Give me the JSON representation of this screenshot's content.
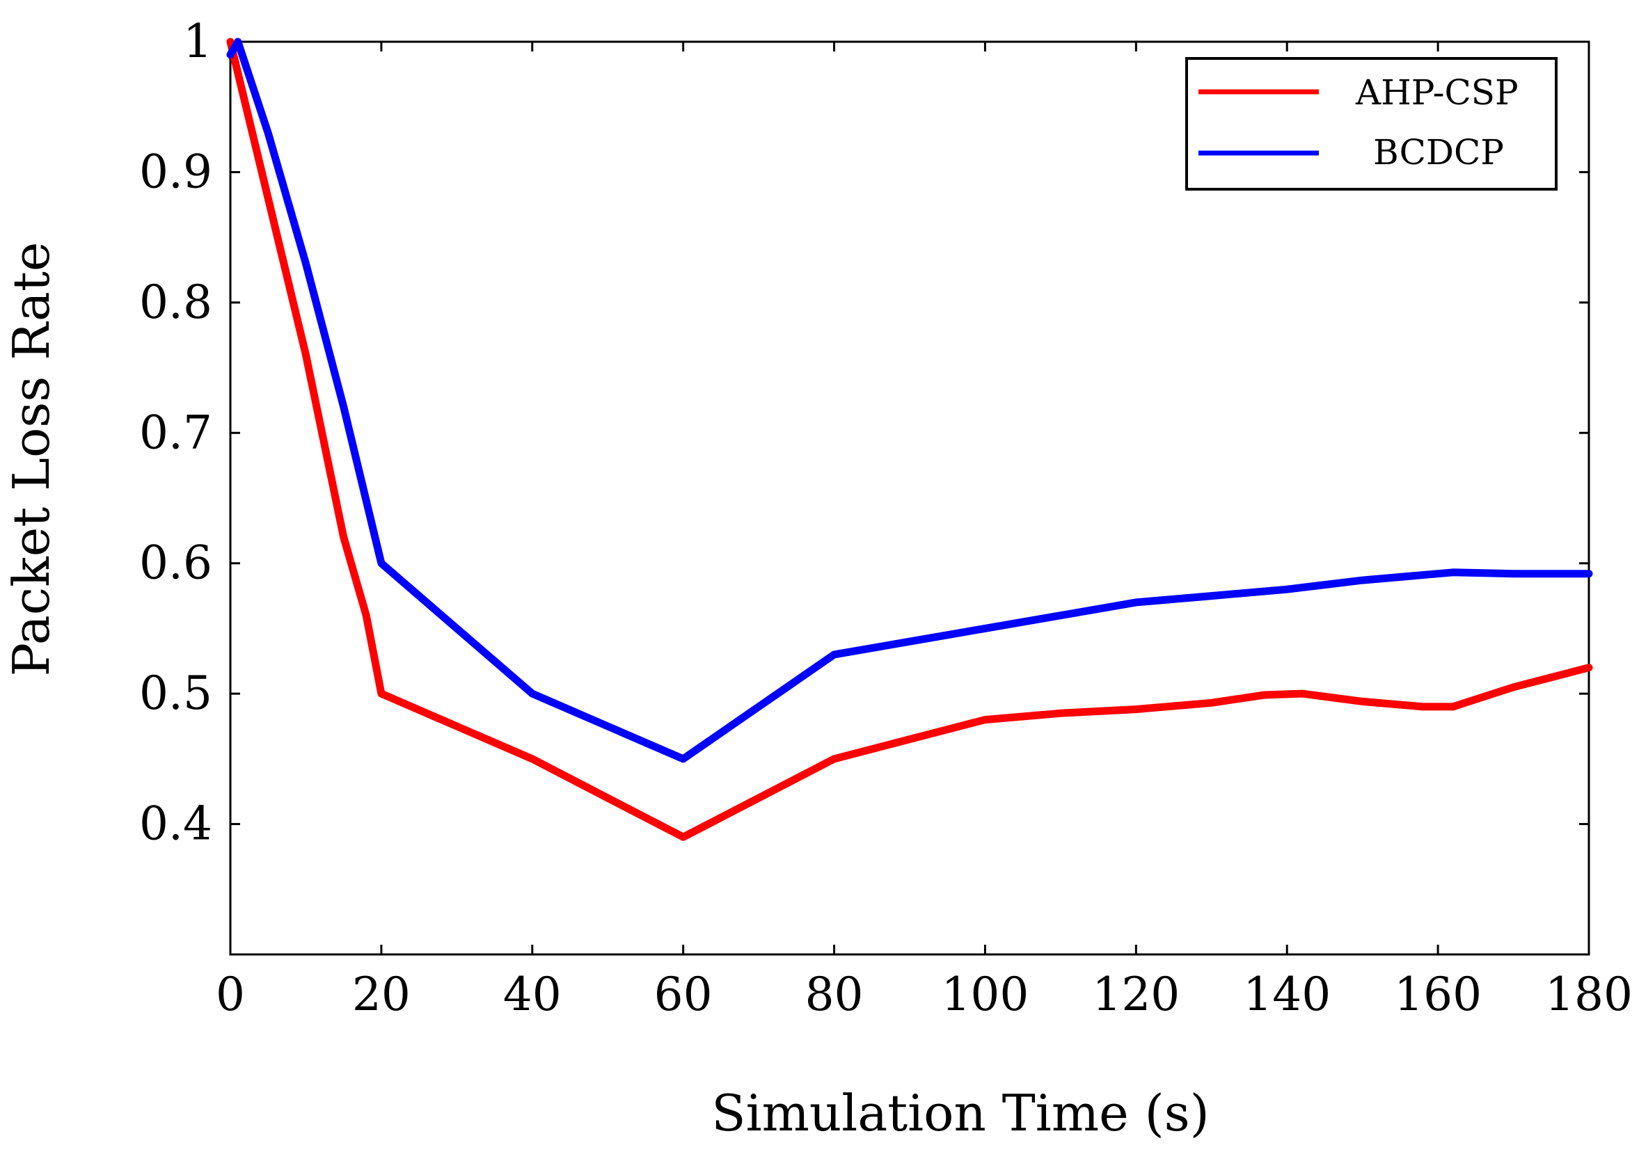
{
  "chart_data": {
    "type": "line",
    "title": "",
    "xlabel": "Simulation Time (s)",
    "ylabel": "Packet Loss Rate",
    "xlim": [
      0,
      180
    ],
    "ylim": [
      0.3,
      1.0
    ],
    "xticks": [
      0,
      20,
      40,
      60,
      80,
      100,
      120,
      140,
      160,
      180
    ],
    "xtick_labels": [
      "0",
      "20",
      "40",
      "60",
      "80",
      "100",
      "120",
      "140",
      "160",
      "180"
    ],
    "yticks": [
      0.4,
      0.5,
      0.6,
      0.7,
      0.8,
      0.9,
      1.0
    ],
    "ytick_labels": [
      "0.4",
      "0.5",
      "0.6",
      "0.7",
      "0.8",
      "0.9",
      "1"
    ],
    "grid": false,
    "legend_position": "top-right",
    "series": [
      {
        "name": "AHP-CSP",
        "color": "#ff0000",
        "x": [
          0,
          5,
          10,
          15,
          18,
          20,
          30,
          40,
          50,
          60,
          70,
          80,
          90,
          100,
          110,
          120,
          130,
          137,
          142,
          150,
          158,
          162,
          170,
          180
        ],
        "y": [
          1.0,
          0.88,
          0.76,
          0.62,
          0.56,
          0.5,
          0.475,
          0.45,
          0.42,
          0.39,
          0.42,
          0.45,
          0.465,
          0.48,
          0.485,
          0.488,
          0.493,
          0.499,
          0.5,
          0.494,
          0.49,
          0.49,
          0.505,
          0.52
        ]
      },
      {
        "name": "BCDCP",
        "color": "#0000ff",
        "x": [
          0,
          1,
          5,
          10,
          15,
          20,
          30,
          40,
          50,
          60,
          70,
          80,
          90,
          100,
          110,
          120,
          130,
          140,
          150,
          160,
          162,
          170,
          180
        ],
        "y": [
          0.99,
          1.0,
          0.93,
          0.83,
          0.72,
          0.6,
          0.55,
          0.5,
          0.475,
          0.45,
          0.49,
          0.53,
          0.54,
          0.55,
          0.56,
          0.57,
          0.575,
          0.58,
          0.587,
          0.592,
          0.593,
          0.592,
          0.592
        ]
      }
    ]
  }
}
